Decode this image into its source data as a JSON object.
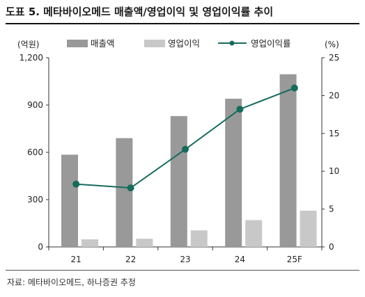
{
  "chart_data": {
    "type": "bar+line",
    "title": "도표 5. 메타바이오메드 매출액/영업이익 및 영업이익률 추이",
    "categories": [
      "21",
      "22",
      "23",
      "24",
      "25F"
    ],
    "series": [
      {
        "name": "매출액",
        "type": "bar",
        "axis": "left",
        "color": "#999999",
        "values": [
          585,
          690,
          830,
          940,
          1095
        ]
      },
      {
        "name": "영업이익",
        "type": "bar",
        "axis": "left",
        "color": "#c8c8c8",
        "values": [
          48,
          52,
          105,
          170,
          230
        ]
      },
      {
        "name": "영업이익률",
        "type": "line",
        "axis": "right",
        "color": "#156b5c",
        "values": [
          8.3,
          7.8,
          12.9,
          18.2,
          21.0
        ]
      }
    ],
    "y_left": {
      "label": "(억원)",
      "min": 0,
      "max": 1200,
      "ticks": [
        0,
        300,
        600,
        900,
        1200
      ],
      "tick_labels": [
        "0",
        "300",
        "600",
        "900",
        "1,200"
      ]
    },
    "y_right": {
      "label": "(%)",
      "min": 0,
      "max": 25,
      "ticks": [
        0,
        5,
        10,
        15,
        20,
        25
      ],
      "tick_labels": [
        "0",
        "5",
        "10",
        "15",
        "20",
        "25"
      ]
    },
    "legend_position": "top",
    "grid": false,
    "source": "자료: 메타바이오메드, 하나증권 추정"
  }
}
